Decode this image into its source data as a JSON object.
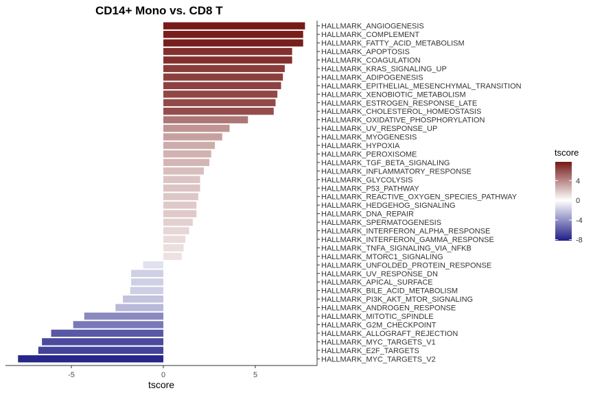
{
  "chart_data": {
    "type": "bar",
    "orientation": "horizontal",
    "title": "CD14+ Mono vs. CD8 T",
    "xlabel": "tscore",
    "ylabel": "",
    "xlim": [
      -8.5,
      8.5
    ],
    "x_ticks": [
      -5,
      0,
      5
    ],
    "x_tick_labels": [
      "-5",
      "0",
      "5"
    ],
    "grid": false,
    "categories": [
      "HALLMARK_ANGIOGENESIS",
      "HALLMARK_COMPLEMENT",
      "HALLMARK_FATTY_ACID_METABOLISM",
      "HALLMARK_APOPTOSIS",
      "HALLMARK_COAGULATION",
      "HALLMARK_KRAS_SIGNALING_UP",
      "HALLMARK_ADIPOGENESIS",
      "HALLMARK_EPITHELIAL_MESENCHYMAL_TRANSITION",
      "HALLMARK_XENOBIOTIC_METABOLISM",
      "HALLMARK_ESTROGEN_RESPONSE_LATE",
      "HALLMARK_CHOLESTEROL_HOMEOSTASIS",
      "HALLMARK_OXIDATIVE_PHOSPHORYLATION",
      "HALLMARK_UV_RESPONSE_UP",
      "HALLMARK_MYOGENESIS",
      "HALLMARK_HYPOXIA",
      "HALLMARK_PEROXISOME",
      "HALLMARK_TGF_BETA_SIGNALING",
      "HALLMARK_INFLAMMATORY_RESPONSE",
      "HALLMARK_GLYCOLYSIS",
      "HALLMARK_P53_PATHWAY",
      "HALLMARK_REACTIVE_OXYGEN_SPECIES_PATHWAY",
      "HALLMARK_HEDGEHOG_SIGNALING",
      "HALLMARK_DNA_REPAIR",
      "HALLMARK_SPERMATOGENESIS",
      "HALLMARK_INTERFERON_ALPHA_RESPONSE",
      "HALLMARK_INTERFERON_GAMMA_RESPONSE",
      "HALLMARK_TNFA_SIGNALING_VIA_NFKB",
      "HALLMARK_MTORC1_SIGNALING",
      "HALLMARK_UNFOLDED_PROTEIN_RESPONSE",
      "HALLMARK_UV_RESPONSE_DN",
      "HALLMARK_APICAL_SURFACE",
      "HALLMARK_BILE_ACID_METABOLISM",
      "HALLMARK_PI3K_AKT_MTOR_SIGNALING",
      "HALLMARK_ANDROGEN_RESPONSE",
      "HALLMARK_MITOTIC_SPINDLE",
      "HALLMARK_G2M_CHECKPOINT",
      "HALLMARK_ALLOGRAFT_REJECTION",
      "HALLMARK_MYC_TARGETS_V1",
      "HALLMARK_E2F_TARGETS",
      "HALLMARK_MYC_TARGETS_V2"
    ],
    "values": [
      7.7,
      7.6,
      7.6,
      7.0,
      7.0,
      6.6,
      6.5,
      6.4,
      6.2,
      6.1,
      6.0,
      4.6,
      3.6,
      3.2,
      2.8,
      2.6,
      2.5,
      2.2,
      2.0,
      2.0,
      1.9,
      1.8,
      1.8,
      1.6,
      1.4,
      1.2,
      1.1,
      1.0,
      -1.1,
      -1.75,
      -1.75,
      -1.8,
      -2.2,
      -2.6,
      -4.3,
      -4.9,
      -6.1,
      -6.6,
      -6.8,
      -7.9
    ],
    "legend": {
      "title": "tscore",
      "placement": "right",
      "ticks": [
        4,
        0,
        -4,
        -8
      ],
      "tick_labels": [
        "4",
        "0",
        "-4",
        "-8"
      ],
      "range": [
        -8.2,
        7.8
      ],
      "low_color": "#1f1e87",
      "mid_color": "#ffffff",
      "high_color": "#741816"
    }
  }
}
